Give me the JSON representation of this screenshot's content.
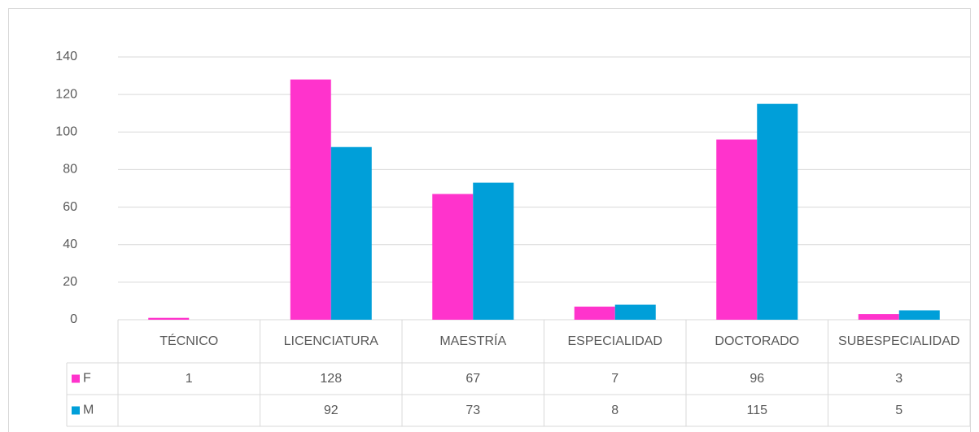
{
  "chart_data": {
    "type": "bar",
    "categories": [
      "TÉCNICO",
      "LICENCIATURA",
      "MAESTRÍA",
      "ESPECIALIDAD",
      "DOCTORADO",
      "SUBESPECIALIDAD"
    ],
    "series": [
      {
        "name": "F",
        "color": "#ff33cc",
        "values": [
          1,
          128,
          67,
          7,
          96,
          3
        ]
      },
      {
        "name": "M",
        "color": "#009fd9",
        "values": [
          null,
          92,
          73,
          8,
          115,
          5
        ]
      }
    ],
    "ylim": [
      0,
      140
    ],
    "yticks": [
      0,
      20,
      40,
      60,
      80,
      100,
      120,
      140
    ],
    "grid": true
  }
}
